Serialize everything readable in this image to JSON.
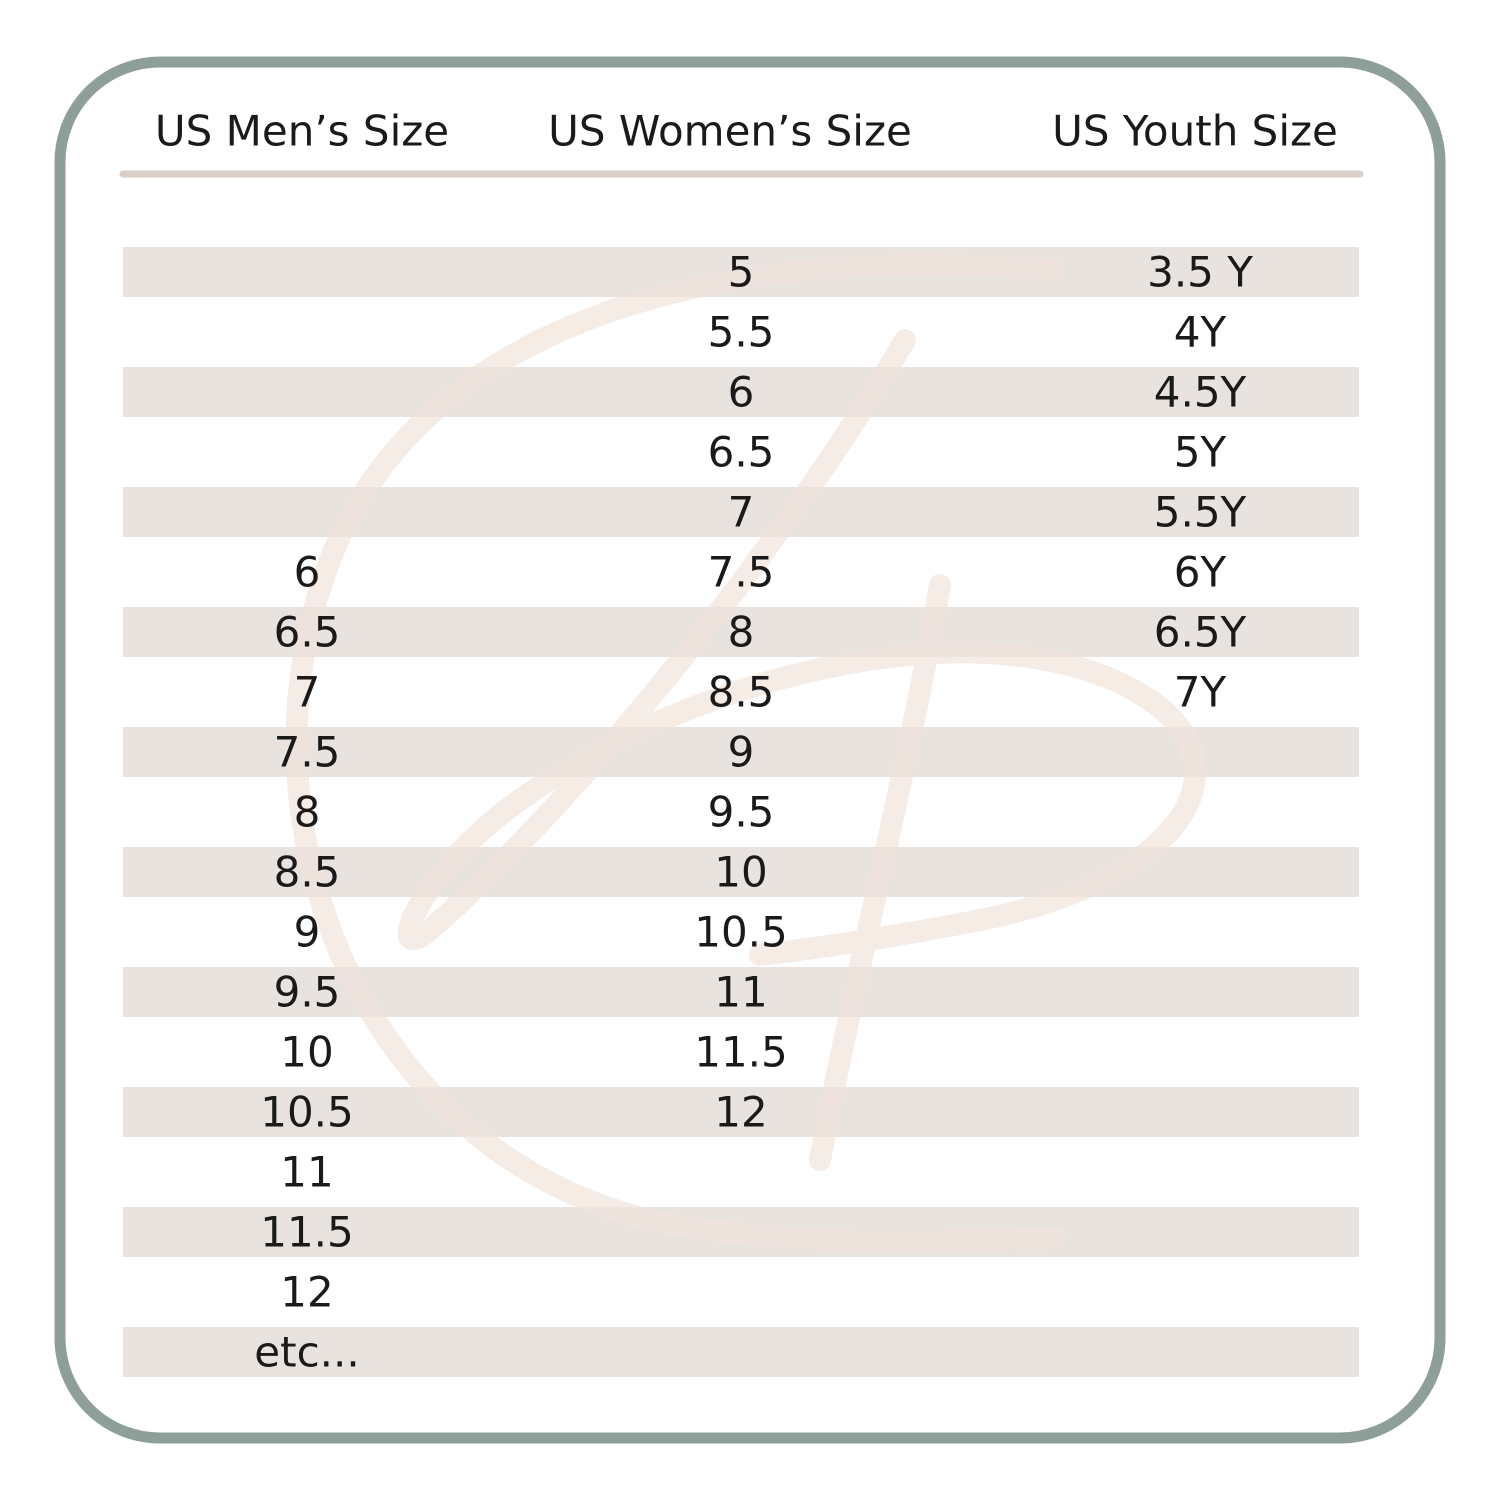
{
  "table": {
    "header": [
      "US Men’s Size",
      "US Women’s Size",
      "US Youth Size"
    ],
    "rows": [
      [
        null,
        "5",
        "3.5 Y"
      ],
      [
        null,
        "5.5",
        "4Y"
      ],
      [
        null,
        "6",
        "4.5Y"
      ],
      [
        null,
        "6.5",
        "5Y"
      ],
      [
        null,
        "7",
        "5.5Y"
      ],
      [
        "6",
        "7.5",
        "6Y"
      ],
      [
        "6.5",
        "8",
        "6.5Y"
      ],
      [
        "7",
        "8.5",
        "7Y"
      ],
      [
        "7.5",
        "9",
        null
      ],
      [
        "8",
        "9.5",
        null
      ],
      [
        "8.5",
        "10",
        null
      ],
      [
        "9",
        "10.5",
        null
      ],
      [
        "9.5",
        "11",
        null
      ],
      [
        "10",
        "11.5",
        null
      ],
      [
        "10.5",
        "12",
        null
      ],
      [
        "11",
        null,
        null
      ],
      [
        "11.5",
        null,
        null
      ],
      [
        "12",
        null,
        null
      ],
      [
        "etc...",
        null,
        null
      ]
    ]
  }
}
